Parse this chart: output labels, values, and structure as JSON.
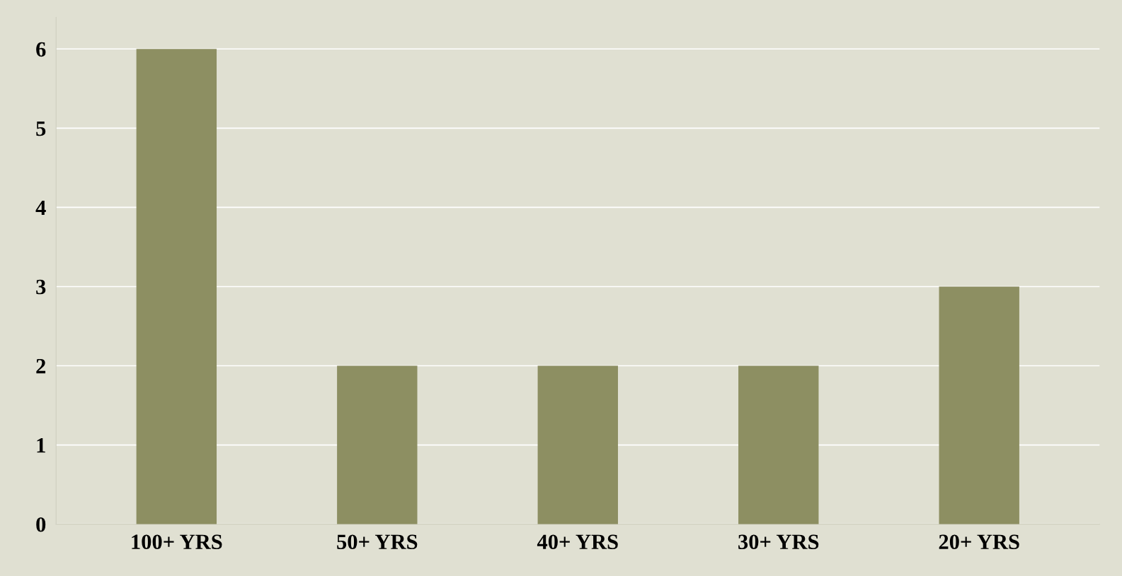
{
  "chart_data": {
    "type": "bar",
    "categories": [
      "100+ YRS",
      "50+ YRS",
      "40+ YRS",
      "30+ YRS",
      "20+ YRS"
    ],
    "values": [
      6,
      2,
      2,
      2,
      3
    ],
    "color": "#8d8f62",
    "ylim": [
      0,
      6.4
    ],
    "yticks": [
      0,
      1,
      2,
      3,
      4,
      5,
      6
    ],
    "grid": "y"
  }
}
